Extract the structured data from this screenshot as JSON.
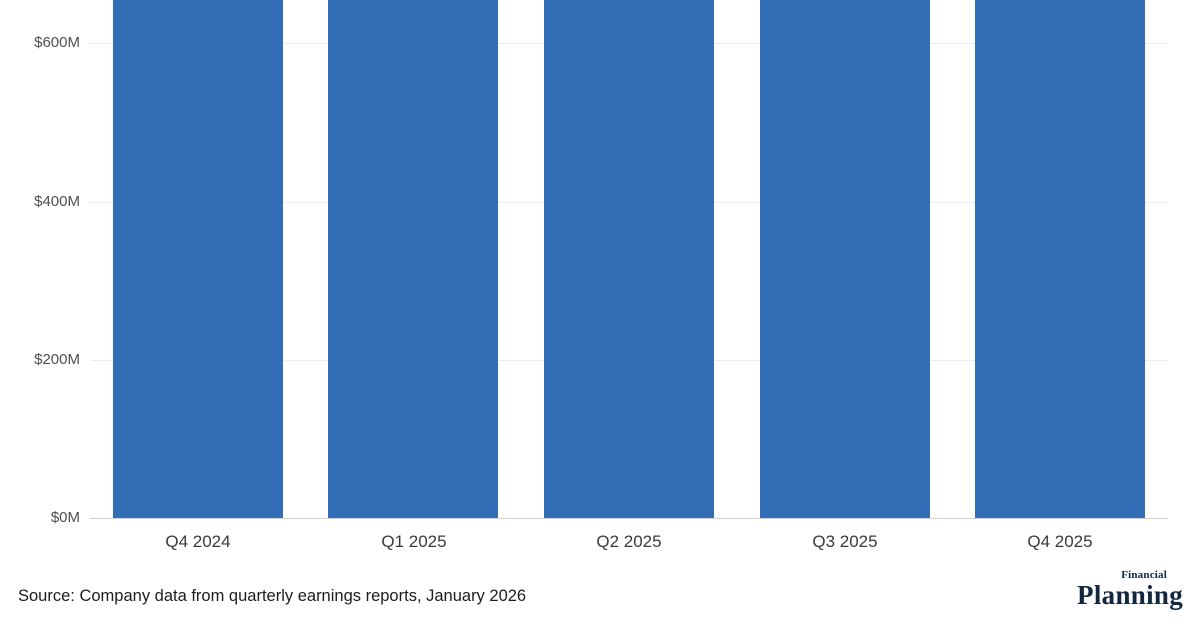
{
  "chart_data": {
    "type": "bar",
    "categories": [
      "Q4 2024",
      "Q1 2025",
      "Q2 2025",
      "Q3 2025",
      "Q4 2025"
    ],
    "values": [
      null,
      null,
      null,
      null,
      null
    ],
    "values_note": "All five bars are truncated at the top edge of the cropped image; each visible bar extends above the $600M gridline (>= ~$650M at the crop line). Exact totals are not visible.",
    "title": "",
    "xlabel": "",
    "ylabel": "",
    "y_axis": {
      "tick_labels": [
        "$0M",
        "$200M",
        "$400M",
        "$600M"
      ],
      "tick_values": [
        0,
        200,
        400,
        600
      ],
      "visible_range": [
        0,
        655
      ]
    },
    "grid": true,
    "legend": "none",
    "bar_color": "#316cb4"
  },
  "footer": {
    "source": "Source: Company data from quarterly earnings reports, January 2026",
    "logo_top": "Financial",
    "logo_bottom": "Planning"
  },
  "colors": {
    "bar": "#316cb4",
    "gridline": "#ececec",
    "axis_line": "#d2d2d2",
    "tick_text": "#4f4f4f",
    "category_text": "#3a3a3a",
    "source_text": "#1c1c1c",
    "logo_navy": "#12263f",
    "background": "#ffffff"
  }
}
